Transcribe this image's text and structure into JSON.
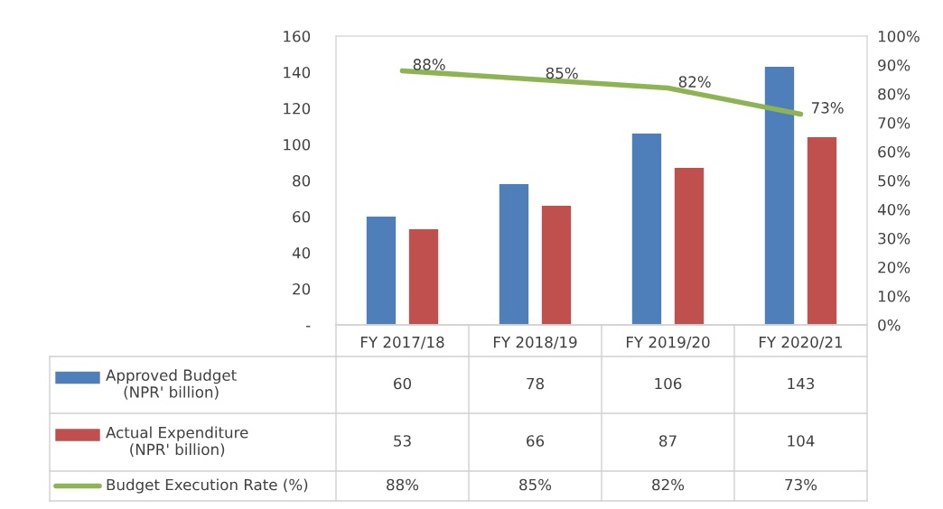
{
  "chart_data": {
    "type": "bar",
    "categories": [
      "FY 2017/18",
      "FY 2018/19",
      "FY 2019/20",
      "FY 2020/21"
    ],
    "series": [
      {
        "name": "Approved Budget\n(NPR' billion)",
        "color": "#4f7fba",
        "values": [
          60,
          78,
          106,
          143
        ]
      },
      {
        "name": "Actual Expenditure\n(NPR' billion)",
        "color": "#c0504d",
        "values": [
          53,
          66,
          87,
          104
        ]
      },
      {
        "name": "Budget Execution Rate (%)",
        "type": "line",
        "axis": "y2",
        "color": "#8db353",
        "values": [
          88,
          85,
          82,
          73
        ],
        "value_labels": [
          "88%",
          "85%",
          "82%",
          "73%"
        ]
      }
    ],
    "ylim": [
      0,
      160
    ],
    "yticks": [
      {
        "value": 0,
        "label": "-"
      },
      20,
      40,
      60,
      80,
      100,
      120,
      140,
      160
    ],
    "y2lim": [
      0,
      100
    ],
    "y2ticks": [
      {
        "value": 0,
        "label": "0%"
      },
      {
        "value": 10,
        "label": "10%"
      },
      {
        "value": 20,
        "label": "20%"
      },
      {
        "value": 30,
        "label": "30%"
      },
      {
        "value": 40,
        "label": "40%"
      },
      {
        "value": 50,
        "label": "50%"
      },
      {
        "value": 60,
        "label": "60%"
      },
      {
        "value": 70,
        "label": "70%"
      },
      {
        "value": 80,
        "label": "80%"
      },
      {
        "value": 90,
        "label": "90%"
      },
      {
        "value": 100,
        "label": "100%"
      }
    ],
    "data_labels": true,
    "grid": false,
    "legend": "bottom",
    "marker": "none"
  }
}
